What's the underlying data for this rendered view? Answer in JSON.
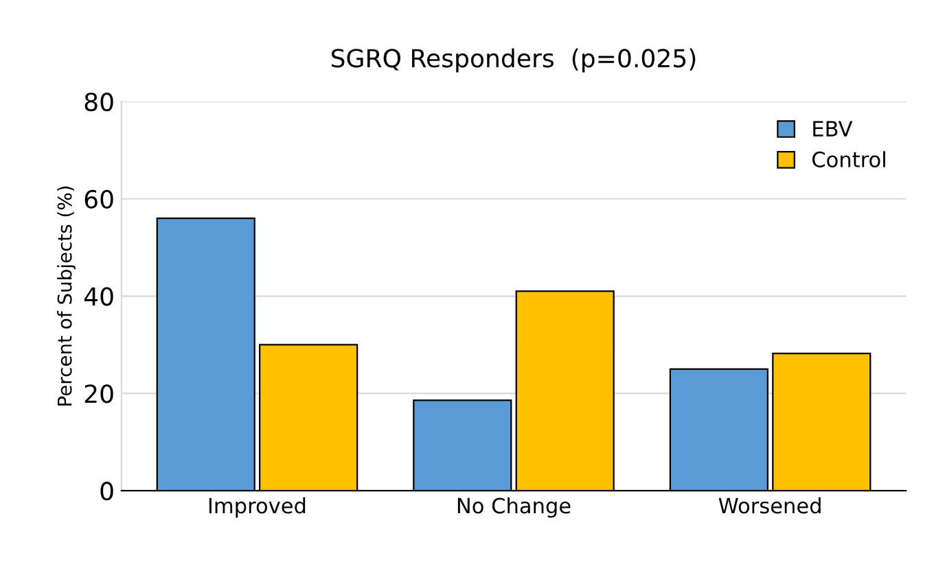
{
  "chart_data": {
    "type": "bar",
    "title": "SGRQ Responders  (p=0.025)",
    "ylabel": "Percent of Subjects (%)",
    "categories": [
      "Improved",
      "No Change",
      "Worsened"
    ],
    "series": [
      {
        "name": "EBV",
        "color": "#5b9bd5",
        "values": [
          56,
          18.6,
          25
        ]
      },
      {
        "name": "Control",
        "color": "#ffc000",
        "values": [
          30,
          41,
          28.2
        ]
      }
    ],
    "ylim": [
      0,
      80
    ],
    "yticks": [
      0,
      20,
      40,
      60,
      80
    ],
    "grid": "y",
    "legend": "top right"
  }
}
